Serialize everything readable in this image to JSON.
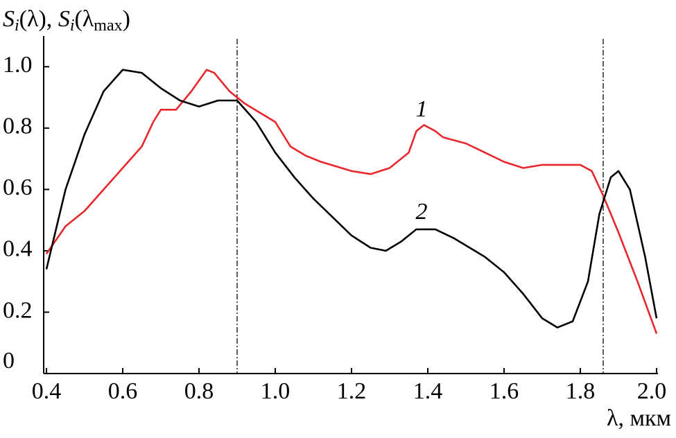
{
  "chart_data": {
    "type": "line",
    "ylabel_parts": [
      "S",
      "i",
      "(λ), ",
      "S",
      "i",
      "(λ",
      "max",
      ")"
    ],
    "xlabel": "λ, мкм",
    "xlim": [
      0.4,
      2.0
    ],
    "ylim": [
      0,
      1.1
    ],
    "xticks": [
      0.4,
      0.6,
      0.8,
      {
        "value": 1.0,
        "label": "1.0"
      },
      1.2,
      1.4,
      1.6,
      1.8,
      {
        "value": 2.0,
        "label": "2.0"
      }
    ],
    "yticks": [
      0,
      0.2,
      0.4,
      0.6,
      0.8,
      {
        "value": 1.0,
        "label": "1.0"
      }
    ],
    "vlines": [
      0.9,
      1.86
    ],
    "annotations": [
      "1",
      "2"
    ],
    "series": [
      {
        "name": "1",
        "color": "#e8262b",
        "x": [
          0.4,
          0.45,
          0.5,
          0.55,
          0.6,
          0.65,
          0.68,
          0.7,
          0.74,
          0.78,
          0.82,
          0.84,
          0.88,
          0.92,
          0.96,
          1.0,
          1.04,
          1.08,
          1.12,
          1.2,
          1.25,
          1.3,
          1.35,
          1.37,
          1.39,
          1.42,
          1.44,
          1.5,
          1.55,
          1.6,
          1.65,
          1.7,
          1.75,
          1.8,
          1.83,
          1.86,
          1.9,
          1.95,
          2.0
        ],
        "values": [
          0.39,
          0.48,
          0.53,
          0.6,
          0.67,
          0.74,
          0.82,
          0.86,
          0.86,
          0.92,
          0.99,
          0.98,
          0.92,
          0.88,
          0.85,
          0.82,
          0.74,
          0.71,
          0.69,
          0.66,
          0.65,
          0.67,
          0.72,
          0.79,
          0.81,
          0.79,
          0.77,
          0.75,
          0.72,
          0.69,
          0.67,
          0.68,
          0.68,
          0.68,
          0.66,
          0.58,
          0.46,
          0.3,
          0.13
        ]
      },
      {
        "name": "2",
        "color": "#000000",
        "x": [
          0.4,
          0.45,
          0.5,
          0.55,
          0.6,
          0.65,
          0.7,
          0.75,
          0.8,
          0.85,
          0.9,
          0.95,
          1.0,
          1.05,
          1.1,
          1.15,
          1.2,
          1.25,
          1.29,
          1.33,
          1.37,
          1.42,
          1.47,
          1.55,
          1.6,
          1.65,
          1.7,
          1.74,
          1.78,
          1.82,
          1.85,
          1.88,
          1.9,
          1.93,
          1.97,
          2.0
        ],
        "values": [
          0.34,
          0.6,
          0.78,
          0.92,
          0.99,
          0.98,
          0.93,
          0.89,
          0.87,
          0.89,
          0.89,
          0.82,
          0.72,
          0.64,
          0.57,
          0.51,
          0.45,
          0.41,
          0.4,
          0.43,
          0.47,
          0.47,
          0.44,
          0.38,
          0.33,
          0.26,
          0.18,
          0.15,
          0.17,
          0.3,
          0.52,
          0.64,
          0.66,
          0.6,
          0.38,
          0.18
        ]
      }
    ]
  }
}
